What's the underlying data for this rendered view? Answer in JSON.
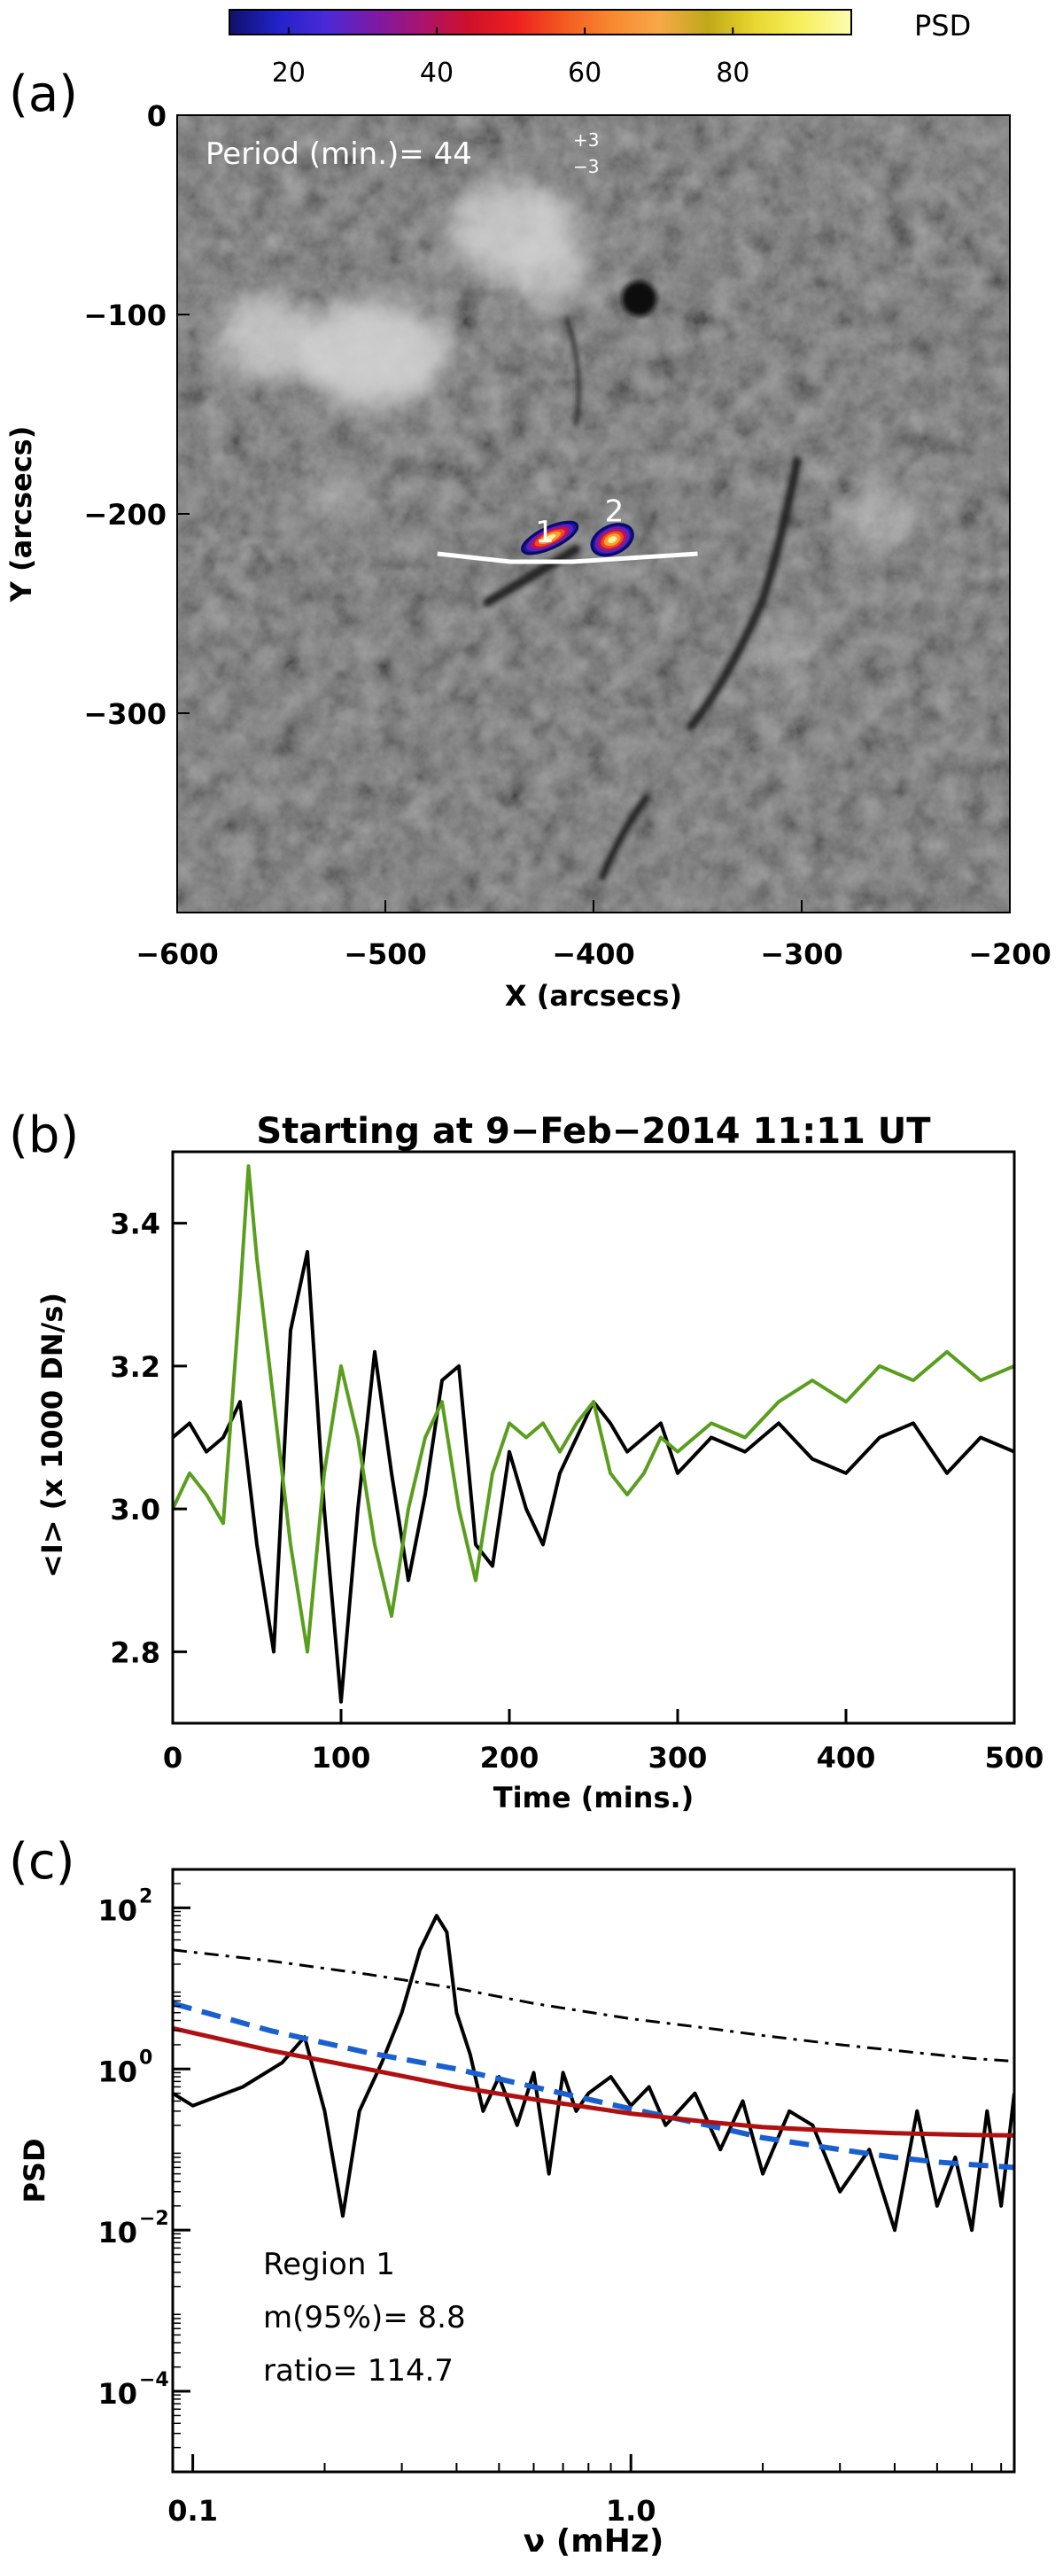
{
  "panels": {
    "a_label": "(a)",
    "b_label": "(b)",
    "c_label": "(c)"
  },
  "colorbar": {
    "label": "PSD",
    "ticks": [
      "20",
      "40",
      "60",
      "80"
    ],
    "tick_values": [
      20,
      40,
      60,
      80
    ],
    "range": [
      12,
      96
    ],
    "colors": [
      "#10106a",
      "#2222c8",
      "#4a2ad8",
      "#7a1aa8",
      "#a81470",
      "#d0102a",
      "#ee2020",
      "#f45a20",
      "#f88830",
      "#f8a848",
      "#c0a818",
      "#e8d830",
      "#f8f060",
      "#fcfcb0"
    ]
  },
  "chart_data": [
    {
      "type": "heatmap",
      "annotation": {
        "text": "Period (min.)=  44",
        "sup": "+3",
        "sub": "−3"
      },
      "xlabel": "X (arcsecs)",
      "ylabel": "Y (arcsecs)",
      "xlim": [
        -600,
        -200
      ],
      "ylim": [
        -400,
        0
      ],
      "xticks": [
        -600,
        -500,
        -400,
        -300,
        -200
      ],
      "yticks": [
        0,
        -100,
        -200,
        -300
      ],
      "xtick_labels": [
        "−600",
        "−500",
        "−400",
        "−300",
        "−200"
      ],
      "ytick_labels": [
        "0",
        "−100",
        "−200",
        "−300"
      ],
      "sunspot": {
        "x": -378,
        "y": -92
      },
      "slit": {
        "x": [
          -475,
          -440,
          -410,
          -380,
          -350
        ],
        "y": [
          -220,
          -224,
          -224,
          -222,
          -220
        ]
      },
      "regions": [
        {
          "label": "1",
          "x": -420,
          "y": -215
        },
        {
          "label": "2",
          "x": -390,
          "y": -210
        }
      ],
      "blobs": [
        {
          "x": [
            -432,
            -410
          ],
          "y": [
            -218,
            -206
          ],
          "peak": 85
        },
        {
          "x": [
            -398,
            -384
          ],
          "y": [
            -222,
            -204
          ],
          "peak": 70
        }
      ]
    },
    {
      "type": "line",
      "title": "Starting at 9−Feb−2014 11:11 UT",
      "xlabel": "Time (mins.)",
      "ylabel": "<I> (x 1000 DN/s)",
      "xlim": [
        0,
        500
      ],
      "ylim": [
        2.7,
        3.5
      ],
      "xticks": [
        0,
        100,
        200,
        300,
        400,
        500
      ],
      "yticks": [
        2.8,
        3.0,
        3.2,
        3.4
      ],
      "ytick_labels": [
        "2.8",
        "3.0",
        "3.2",
        "3.4"
      ],
      "series": [
        {
          "color": "#000000",
          "x": [
            0,
            10,
            20,
            30,
            40,
            50,
            60,
            70,
            80,
            90,
            100,
            110,
            120,
            130,
            140,
            150,
            160,
            170,
            180,
            190,
            200,
            210,
            220,
            230,
            240,
            250,
            260,
            270,
            280,
            290,
            300,
            320,
            340,
            360,
            380,
            400,
            420,
            440,
            460,
            480,
            500
          ],
          "y": [
            3.1,
            3.12,
            3.08,
            3.1,
            3.15,
            2.95,
            2.8,
            3.25,
            3.36,
            3.0,
            2.73,
            3.0,
            3.22,
            3.05,
            2.9,
            3.02,
            3.18,
            3.2,
            2.95,
            2.92,
            3.08,
            3.0,
            2.95,
            3.05,
            3.1,
            3.15,
            3.12,
            3.08,
            3.1,
            3.12,
            3.05,
            3.1,
            3.08,
            3.12,
            3.07,
            3.05,
            3.1,
            3.12,
            3.05,
            3.1,
            3.08
          ]
        },
        {
          "color": "#5a9e1e",
          "x": [
            0,
            10,
            20,
            30,
            40,
            45,
            50,
            60,
            70,
            80,
            90,
            100,
            110,
            120,
            130,
            140,
            150,
            160,
            170,
            180,
            190,
            200,
            210,
            220,
            230,
            240,
            250,
            260,
            270,
            280,
            290,
            300,
            320,
            340,
            360,
            380,
            400,
            420,
            440,
            460,
            480,
            500
          ],
          "y": [
            3.0,
            3.05,
            3.02,
            2.98,
            3.3,
            3.48,
            3.35,
            3.15,
            2.95,
            2.8,
            3.05,
            3.2,
            3.1,
            2.95,
            2.85,
            3.0,
            3.1,
            3.15,
            3.0,
            2.9,
            3.05,
            3.12,
            3.1,
            3.12,
            3.08,
            3.12,
            3.15,
            3.05,
            3.02,
            3.05,
            3.1,
            3.08,
            3.12,
            3.1,
            3.15,
            3.18,
            3.15,
            3.2,
            3.18,
            3.22,
            3.18,
            3.2
          ]
        }
      ]
    },
    {
      "type": "line",
      "log_x": true,
      "log_y": true,
      "xlabel": "ν (mHz)",
      "ylabel": "PSD",
      "xlim": [
        0.09,
        7.5
      ],
      "ylim": [
        1e-05,
        300
      ],
      "xticks": [
        0.1,
        1.0
      ],
      "xtick_labels": [
        "0.1",
        "1.0"
      ],
      "yticks": [
        100,
        1,
        0.01,
        0.0001
      ],
      "ytick_labels": [
        "10",
        "10",
        "10",
        "10"
      ],
      "ytick_exps": [
        "2",
        "0",
        "−2",
        "−4"
      ],
      "annotations": [
        "Region 1",
        "m(95%)= 8.8",
        "ratio= 114.7"
      ],
      "series": [
        {
          "color": "#000000",
          "style": "solid",
          "x": [
            0.09,
            0.1,
            0.13,
            0.16,
            0.18,
            0.2,
            0.22,
            0.24,
            0.27,
            0.3,
            0.33,
            0.36,
            0.38,
            0.4,
            0.43,
            0.46,
            0.5,
            0.55,
            0.6,
            0.65,
            0.7,
            0.75,
            0.8,
            0.9,
            1.0,
            1.1,
            1.2,
            1.4,
            1.6,
            1.8,
            2.0,
            2.3,
            2.6,
            3.0,
            3.5,
            4.0,
            4.5,
            5.0,
            5.5,
            6.0,
            6.5,
            7.0,
            7.5
          ],
          "y": [
            0.5,
            0.35,
            0.6,
            1.2,
            2.5,
            0.3,
            0.015,
            0.3,
            1.2,
            5,
            30,
            80,
            50,
            5,
            1.5,
            0.3,
            0.8,
            0.2,
            0.9,
            0.05,
            0.9,
            0.3,
            0.5,
            0.8,
            0.35,
            0.6,
            0.2,
            0.5,
            0.1,
            0.4,
            0.05,
            0.3,
            0.2,
            0.03,
            0.1,
            0.01,
            0.3,
            0.02,
            0.08,
            0.01,
            0.3,
            0.02,
            0.5
          ]
        },
        {
          "color": "#000000",
          "style": "dashdot",
          "x": [
            0.09,
            0.15,
            0.25,
            0.4,
            0.6,
            1.0,
            1.5,
            2.0,
            3.0,
            4.0,
            5.0,
            6.0,
            7.5
          ],
          "y": [
            30,
            22,
            15,
            10,
            6.5,
            4.2,
            3.2,
            2.6,
            2.0,
            1.7,
            1.5,
            1.35,
            1.25
          ]
        },
        {
          "color": "#1a5fd0",
          "style": "dashed",
          "x": [
            0.09,
            0.15,
            0.25,
            0.4,
            0.6,
            1.0,
            1.5,
            2.0,
            3.0,
            4.0,
            5.0,
            6.0,
            7.5
          ],
          "y": [
            6.5,
            3.0,
            1.6,
            1.0,
            0.6,
            0.32,
            0.2,
            0.14,
            0.1,
            0.08,
            0.07,
            0.065,
            0.06
          ]
        },
        {
          "color": "#b01010",
          "style": "solid",
          "x": [
            0.09,
            0.15,
            0.25,
            0.4,
            0.6,
            1.0,
            1.5,
            2.0,
            3.0,
            4.0,
            5.0,
            6.0,
            7.5
          ],
          "y": [
            3.2,
            1.7,
            1.0,
            0.6,
            0.42,
            0.28,
            0.22,
            0.19,
            0.17,
            0.16,
            0.155,
            0.152,
            0.15
          ]
        }
      ]
    }
  ]
}
